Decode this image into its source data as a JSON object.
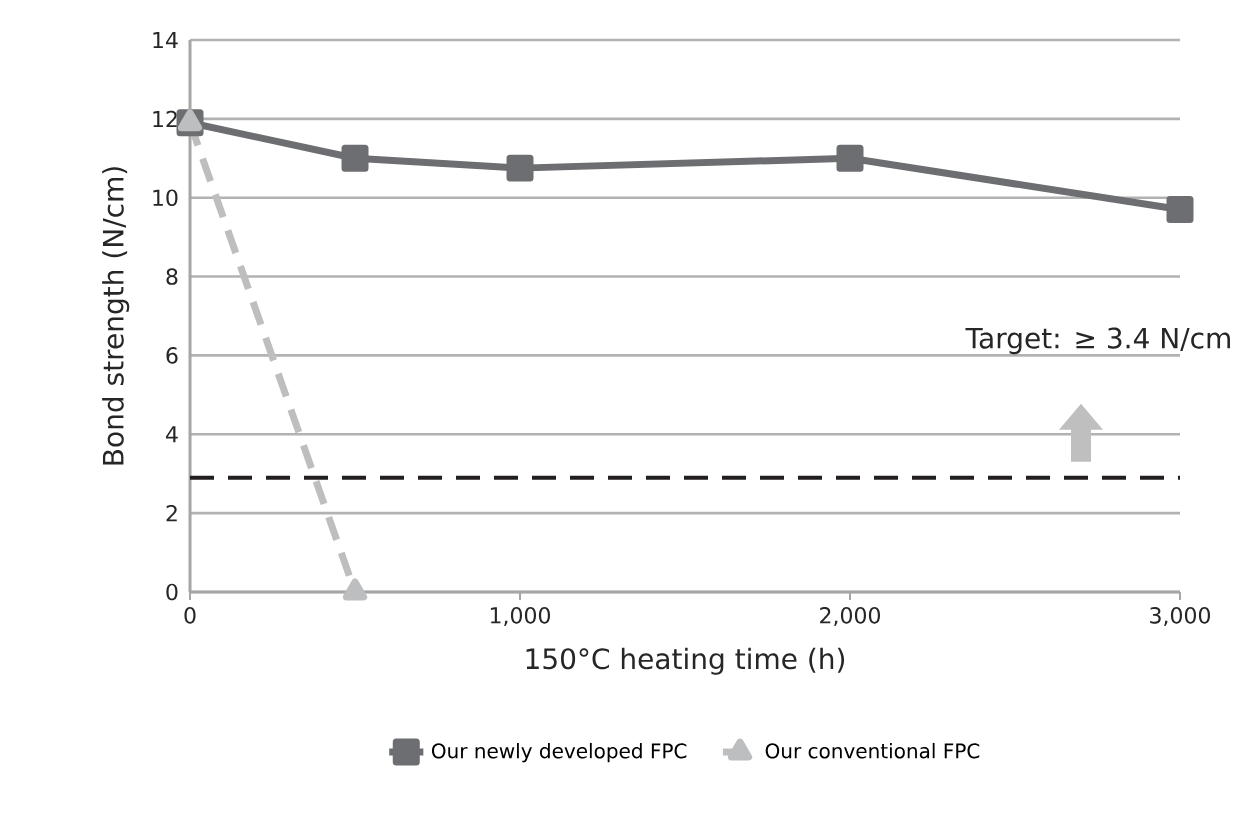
{
  "chart_data": {
    "type": "line",
    "xlabel": "150°C heating time (h)",
    "ylabel": "Bond strength (N/cm)",
    "xlim": [
      0,
      3000
    ],
    "xticks": [
      0,
      {
        "value": 1000,
        "label": "1,000"
      },
      {
        "value": 2000,
        "label": "2,000"
      },
      {
        "value": 3000,
        "label": "3,000"
      }
    ],
    "ylim": [
      0,
      14
    ],
    "yticks": [
      0,
      2,
      4,
      6,
      8,
      10,
      12,
      14
    ],
    "grid": "y",
    "legend": "bottom",
    "series": [
      {
        "name": "Our newly developed FPC",
        "color": "#6d6e71",
        "x": [
          0,
          500,
          1000,
          2000,
          3000
        ],
        "values": [
          11.9,
          11,
          10.75,
          11,
          9.7
        ],
        "marker": "square",
        "line_style": "solid"
      },
      {
        "name": "Our conventional FPC",
        "color": "#bcbec0",
        "x": [
          0,
          500
        ],
        "values": [
          11.9,
          0
        ],
        "marker": "triangle",
        "line_style": "dashed"
      }
    ],
    "ref_lines": [
      {
        "axis": "y",
        "value": 2.9,
        "color": "#231f20",
        "line_style": "dashed"
      }
    ],
    "annotations": [
      "Target: ≥ 3.4 N/cm"
    ]
  }
}
